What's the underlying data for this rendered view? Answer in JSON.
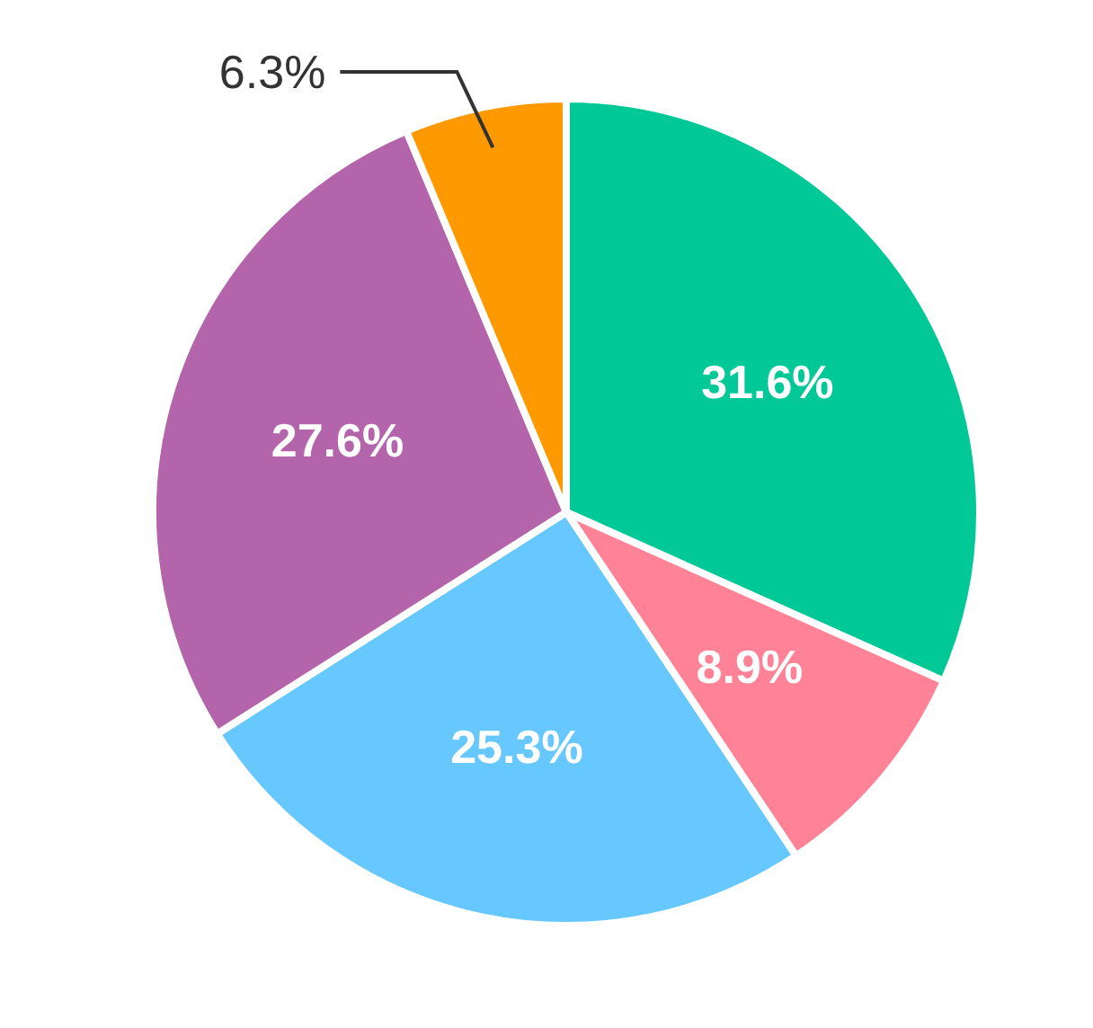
{
  "chart_data": {
    "type": "pie",
    "categories": [
      null,
      null,
      null,
      null,
      null
    ],
    "values": [
      31.6,
      8.9,
      25.3,
      27.6,
      6.3
    ],
    "value_labels": [
      "31.6%",
      "8.9%",
      "25.3%",
      "27.6%",
      "6.3%"
    ],
    "colors": [
      "#00c896",
      "#ff8296",
      "#66c8ff",
      "#b464aa",
      "#ff9900"
    ]
  }
}
